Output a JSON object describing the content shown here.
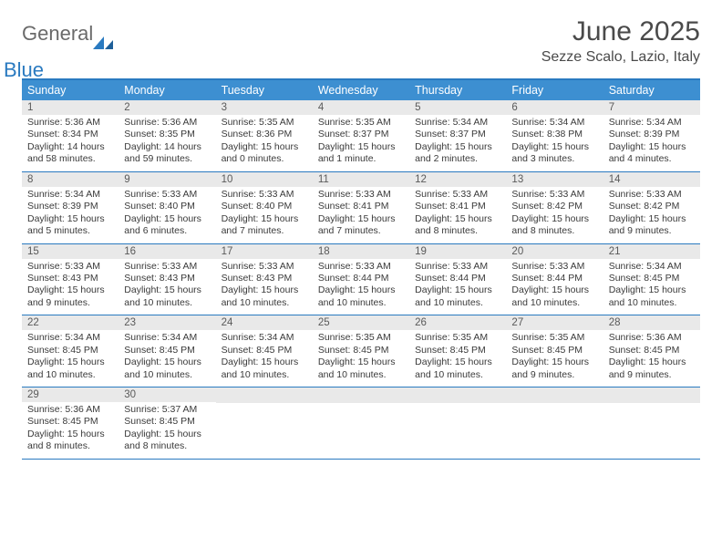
{
  "brand": {
    "word1": "General",
    "word2": "Blue"
  },
  "title": "June 2025",
  "location": "Sezze Scalo, Lazio, Italy",
  "colors": {
    "header_bg": "#3d8fd1",
    "border": "#2a7ac0",
    "daynum_bg": "#e9e9e9",
    "text": "#333333",
    "logo_gray": "#6a6a6a",
    "logo_blue": "#2a7ac0"
  },
  "day_names": [
    "Sunday",
    "Monday",
    "Tuesday",
    "Wednesday",
    "Thursday",
    "Friday",
    "Saturday"
  ],
  "weeks": [
    [
      {
        "n": "1",
        "sr": "5:36 AM",
        "ss": "8:34 PM",
        "dl": "14 hours and 58 minutes."
      },
      {
        "n": "2",
        "sr": "5:36 AM",
        "ss": "8:35 PM",
        "dl": "14 hours and 59 minutes."
      },
      {
        "n": "3",
        "sr": "5:35 AM",
        "ss": "8:36 PM",
        "dl": "15 hours and 0 minutes."
      },
      {
        "n": "4",
        "sr": "5:35 AM",
        "ss": "8:37 PM",
        "dl": "15 hours and 1 minute."
      },
      {
        "n": "5",
        "sr": "5:34 AM",
        "ss": "8:37 PM",
        "dl": "15 hours and 2 minutes."
      },
      {
        "n": "6",
        "sr": "5:34 AM",
        "ss": "8:38 PM",
        "dl": "15 hours and 3 minutes."
      },
      {
        "n": "7",
        "sr": "5:34 AM",
        "ss": "8:39 PM",
        "dl": "15 hours and 4 minutes."
      }
    ],
    [
      {
        "n": "8",
        "sr": "5:34 AM",
        "ss": "8:39 PM",
        "dl": "15 hours and 5 minutes."
      },
      {
        "n": "9",
        "sr": "5:33 AM",
        "ss": "8:40 PM",
        "dl": "15 hours and 6 minutes."
      },
      {
        "n": "10",
        "sr": "5:33 AM",
        "ss": "8:40 PM",
        "dl": "15 hours and 7 minutes."
      },
      {
        "n": "11",
        "sr": "5:33 AM",
        "ss": "8:41 PM",
        "dl": "15 hours and 7 minutes."
      },
      {
        "n": "12",
        "sr": "5:33 AM",
        "ss": "8:41 PM",
        "dl": "15 hours and 8 minutes."
      },
      {
        "n": "13",
        "sr": "5:33 AM",
        "ss": "8:42 PM",
        "dl": "15 hours and 8 minutes."
      },
      {
        "n": "14",
        "sr": "5:33 AM",
        "ss": "8:42 PM",
        "dl": "15 hours and 9 minutes."
      }
    ],
    [
      {
        "n": "15",
        "sr": "5:33 AM",
        "ss": "8:43 PM",
        "dl": "15 hours and 9 minutes."
      },
      {
        "n": "16",
        "sr": "5:33 AM",
        "ss": "8:43 PM",
        "dl": "15 hours and 10 minutes."
      },
      {
        "n": "17",
        "sr": "5:33 AM",
        "ss": "8:43 PM",
        "dl": "15 hours and 10 minutes."
      },
      {
        "n": "18",
        "sr": "5:33 AM",
        "ss": "8:44 PM",
        "dl": "15 hours and 10 minutes."
      },
      {
        "n": "19",
        "sr": "5:33 AM",
        "ss": "8:44 PM",
        "dl": "15 hours and 10 minutes."
      },
      {
        "n": "20",
        "sr": "5:33 AM",
        "ss": "8:44 PM",
        "dl": "15 hours and 10 minutes."
      },
      {
        "n": "21",
        "sr": "5:34 AM",
        "ss": "8:45 PM",
        "dl": "15 hours and 10 minutes."
      }
    ],
    [
      {
        "n": "22",
        "sr": "5:34 AM",
        "ss": "8:45 PM",
        "dl": "15 hours and 10 minutes."
      },
      {
        "n": "23",
        "sr": "5:34 AM",
        "ss": "8:45 PM",
        "dl": "15 hours and 10 minutes."
      },
      {
        "n": "24",
        "sr": "5:34 AM",
        "ss": "8:45 PM",
        "dl": "15 hours and 10 minutes."
      },
      {
        "n": "25",
        "sr": "5:35 AM",
        "ss": "8:45 PM",
        "dl": "15 hours and 10 minutes."
      },
      {
        "n": "26",
        "sr": "5:35 AM",
        "ss": "8:45 PM",
        "dl": "15 hours and 10 minutes."
      },
      {
        "n": "27",
        "sr": "5:35 AM",
        "ss": "8:45 PM",
        "dl": "15 hours and 9 minutes."
      },
      {
        "n": "28",
        "sr": "5:36 AM",
        "ss": "8:45 PM",
        "dl": "15 hours and 9 minutes."
      }
    ],
    [
      {
        "n": "29",
        "sr": "5:36 AM",
        "ss": "8:45 PM",
        "dl": "15 hours and 8 minutes."
      },
      {
        "n": "30",
        "sr": "5:37 AM",
        "ss": "8:45 PM",
        "dl": "15 hours and 8 minutes."
      },
      null,
      null,
      null,
      null,
      null
    ]
  ],
  "labels": {
    "sunrise": "Sunrise:",
    "sunset": "Sunset:",
    "daylight": "Daylight:"
  }
}
